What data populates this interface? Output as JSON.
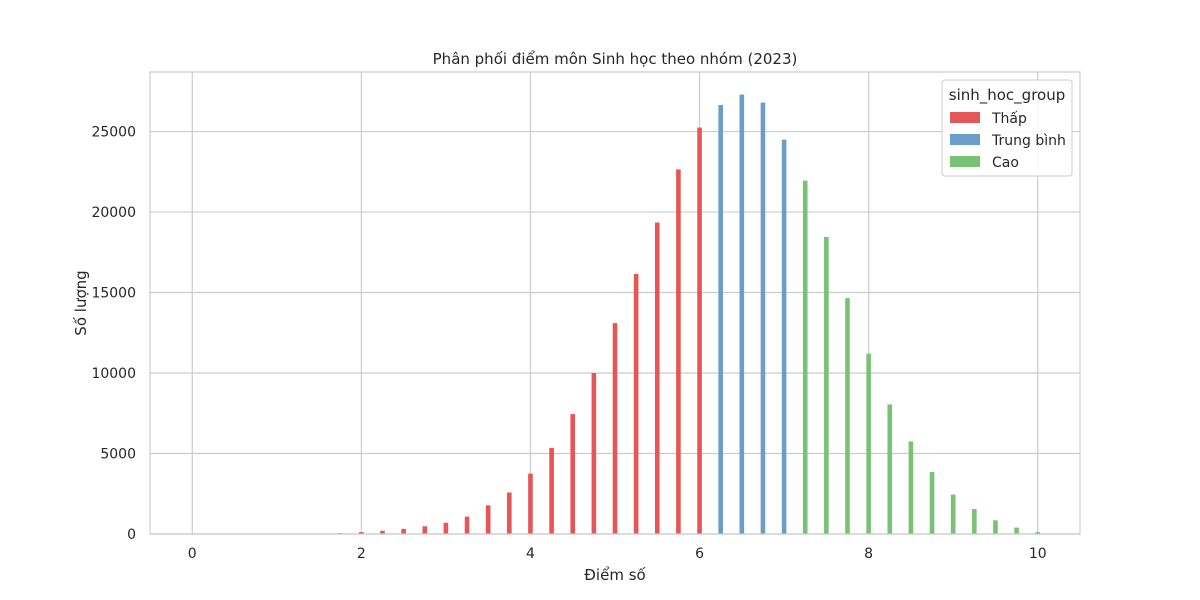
{
  "chart_data": {
    "type": "bar",
    "title": "Phân phối điểm môn Sinh học theo nhóm (2023)",
    "xlabel": "Điểm số",
    "ylabel": "Số lượng",
    "xlim": [
      -0.5,
      10.5
    ],
    "ylim": [
      0,
      28700
    ],
    "xticks": [
      0,
      2,
      4,
      6,
      8,
      10
    ],
    "yticks": [
      0,
      5000,
      10000,
      15000,
      20000,
      25000
    ],
    "grid": true,
    "legend": {
      "title": "sinh_hoc_group",
      "placement": "top-right",
      "entries": [
        "Thấp",
        "Trung bình",
        "Cao"
      ]
    },
    "colors": {
      "Thấp": "#e45756",
      "Trung bình": "#6a9ec8",
      "Cao": "#79c275"
    },
    "series": [
      {
        "name": "Thấp",
        "x": [
          0,
          0.25,
          0.5,
          0.75,
          1,
          1.25,
          1.5,
          1.75,
          2,
          2.25,
          2.5,
          2.75,
          3,
          3.25,
          3.5,
          3.75,
          4,
          4.25,
          4.5,
          4.75,
          5,
          5.25,
          5.5,
          5.75,
          6
        ],
        "values": [
          5,
          3,
          5,
          8,
          12,
          18,
          30,
          50,
          120,
          200,
          320,
          480,
          700,
          1080,
          1780,
          2580,
          3750,
          5350,
          7450,
          10000,
          13100,
          16150,
          19350,
          22650,
          25250
        ]
      },
      {
        "name": "Trung bình",
        "x": [
          6.25,
          6.5,
          6.75,
          7
        ],
        "values": [
          26650,
          27300,
          26800,
          24500
        ]
      },
      {
        "name": "Cao",
        "x": [
          7.25,
          7.5,
          7.75,
          8,
          8.25,
          8.5,
          8.75,
          9,
          9.25,
          9.5,
          9.75,
          10
        ],
        "values": [
          21950,
          18450,
          14650,
          11200,
          8050,
          5750,
          3850,
          2450,
          1550,
          850,
          400,
          120
        ]
      }
    ]
  }
}
